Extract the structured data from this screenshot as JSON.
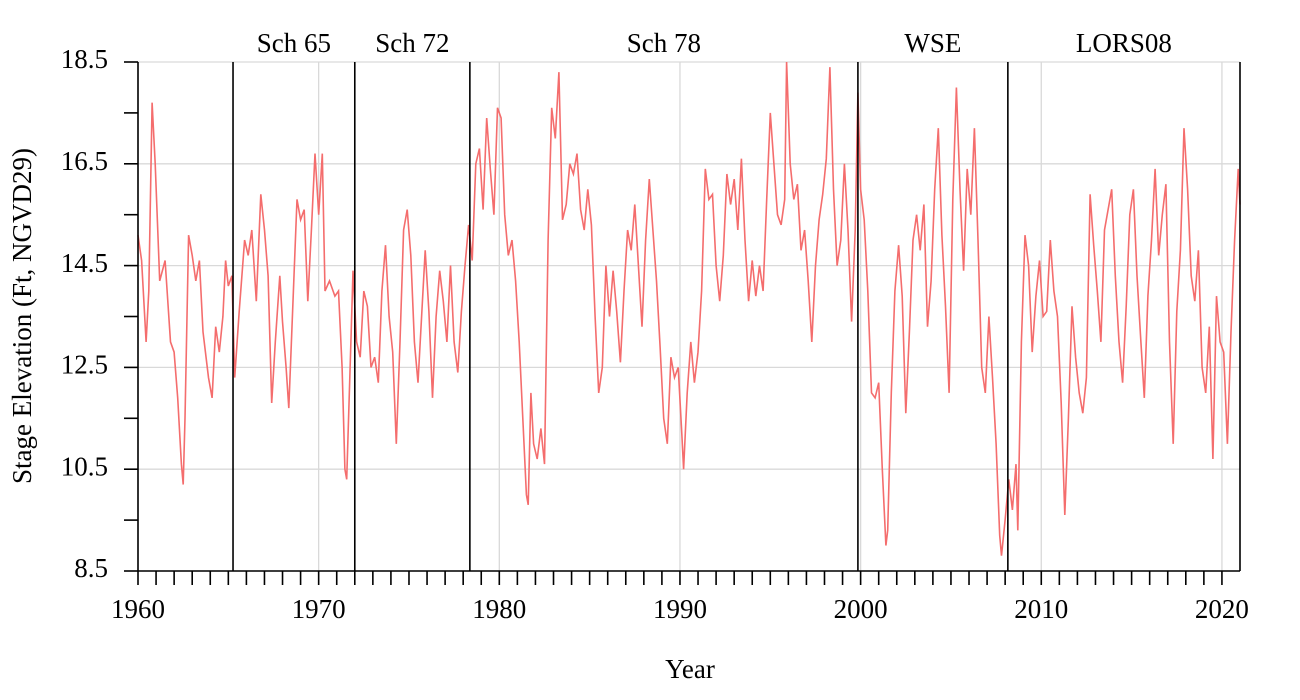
{
  "chart_data": {
    "type": "line",
    "x_label": "Year",
    "y_label": "Stage Elevation (Ft, NGVD29)",
    "xlim": [
      1960,
      2021
    ],
    "ylim": [
      8.5,
      18.5
    ],
    "xticks": [
      1960,
      1970,
      1980,
      1990,
      2000,
      2010,
      2020
    ],
    "yticks": [
      8.5,
      10.5,
      12.5,
      14.5,
      16.5,
      18.5
    ],
    "xminorticks": [
      1961,
      1962,
      1963,
      1964,
      1965,
      1966,
      1967,
      1968,
      1969,
      1971,
      1972,
      1973,
      1974,
      1975,
      1976,
      1977,
      1978,
      1979,
      1981,
      1982,
      1983,
      1984,
      1985,
      1986,
      1987,
      1988,
      1989,
      1991,
      1992,
      1993,
      1994,
      1995,
      1996,
      1997,
      1998,
      1999,
      2001,
      2002,
      2003,
      2004,
      2005,
      2006,
      2007,
      2008,
      2009,
      2011,
      2012,
      2013,
      2014,
      2015,
      2016,
      2017,
      2018,
      2019
    ],
    "yminorticks": [
      9.5,
      11.5,
      13.5,
      15.5,
      17.5
    ],
    "grid": true,
    "period_boundaries": [
      1965.26,
      1972.0,
      1978.37,
      1999.85,
      2008.15
    ],
    "period_labels": [
      "Sch 65",
      "Sch 72",
      "Sch 78",
      "WSE",
      "LORS08"
    ],
    "series": [
      {
        "name": "Stage",
        "color": "#f46d6d",
        "x": [
          1960.0,
          1960.2,
          1960.45,
          1960.6,
          1960.78,
          1960.95,
          1961.2,
          1961.5,
          1961.8,
          1962.0,
          1962.2,
          1962.4,
          1962.5,
          1962.6,
          1962.8,
          1963.0,
          1963.2,
          1963.4,
          1963.6,
          1963.9,
          1964.1,
          1964.3,
          1964.5,
          1964.7,
          1964.85,
          1965.0,
          1965.2,
          1965.35,
          1965.6,
          1965.9,
          1966.1,
          1966.3,
          1966.55,
          1966.8,
          1967.0,
          1967.2,
          1967.4,
          1967.6,
          1967.85,
          1968.0,
          1968.2,
          1968.35,
          1968.6,
          1968.8,
          1969.0,
          1969.2,
          1969.4,
          1969.6,
          1969.8,
          1970.0,
          1970.2,
          1970.35,
          1970.6,
          1970.9,
          1971.1,
          1971.3,
          1971.45,
          1971.55,
          1971.8,
          1971.9,
          1972.1,
          1972.3,
          1972.5,
          1972.7,
          1972.9,
          1973.1,
          1973.3,
          1973.5,
          1973.7,
          1973.9,
          1974.1,
          1974.3,
          1974.5,
          1974.7,
          1974.9,
          1975.1,
          1975.3,
          1975.5,
          1975.7,
          1975.9,
          1976.1,
          1976.3,
          1976.5,
          1976.7,
          1976.9,
          1977.1,
          1977.3,
          1977.5,
          1977.7,
          1977.9,
          1978.1,
          1978.3,
          1978.5,
          1978.7,
          1978.9,
          1979.1,
          1979.3,
          1979.5,
          1979.7,
          1979.9,
          1980.1,
          1980.3,
          1980.5,
          1980.7,
          1980.9,
          1981.1,
          1981.3,
          1981.5,
          1981.6,
          1981.75,
          1981.9,
          1982.1,
          1982.3,
          1982.5,
          1982.7,
          1982.9,
          1983.1,
          1983.3,
          1983.5,
          1983.7,
          1983.9,
          1984.1,
          1984.3,
          1984.5,
          1984.7,
          1984.9,
          1985.1,
          1985.3,
          1985.5,
          1985.7,
          1985.9,
          1986.1,
          1986.3,
          1986.5,
          1986.7,
          1986.9,
          1987.1,
          1987.3,
          1987.5,
          1987.7,
          1987.9,
          1988.1,
          1988.3,
          1988.5,
          1988.7,
          1988.9,
          1989.1,
          1989.3,
          1989.5,
          1989.7,
          1989.9,
          1990.1,
          1990.2,
          1990.4,
          1990.6,
          1990.8,
          1991.0,
          1991.2,
          1991.4,
          1991.6,
          1991.8,
          1992.0,
          1992.2,
          1992.4,
          1992.6,
          1992.8,
          1993.0,
          1993.2,
          1993.4,
          1993.6,
          1993.8,
          1994.0,
          1994.2,
          1994.4,
          1994.6,
          1994.8,
          1995.0,
          1995.2,
          1995.4,
          1995.6,
          1995.8,
          1995.9,
          1996.1,
          1996.3,
          1996.5,
          1996.7,
          1996.9,
          1997.1,
          1997.3,
          1997.5,
          1997.7,
          1997.9,
          1998.1,
          1998.3,
          1998.5,
          1998.7,
          1998.9,
          1999.1,
          1999.3,
          1999.5,
          1999.7,
          1999.85,
          2000.0,
          2000.2,
          2000.4,
          2000.6,
          2000.8,
          2001.0,
          2001.2,
          2001.4,
          2001.5,
          2001.7,
          2001.9,
          2002.1,
          2002.3,
          2002.5,
          2002.7,
          2002.9,
          2003.1,
          2003.3,
          2003.5,
          2003.7,
          2003.9,
          2004.1,
          2004.3,
          2004.5,
          2004.7,
          2004.9,
          2005.1,
          2005.3,
          2005.5,
          2005.7,
          2005.9,
          2006.1,
          2006.3,
          2006.5,
          2006.7,
          2006.9,
          2007.1,
          2007.3,
          2007.5,
          2007.7,
          2007.8,
          2008.0,
          2008.2,
          2008.4,
          2008.6,
          2008.7,
          2008.9,
          2009.1,
          2009.3,
          2009.5,
          2009.7,
          2009.9,
          2010.1,
          2010.3,
          2010.5,
          2010.7,
          2010.9,
          2011.1,
          2011.3,
          2011.5,
          2011.7,
          2011.9,
          2012.1,
          2012.3,
          2012.5,
          2012.7,
          2012.9,
          2013.1,
          2013.3,
          2013.5,
          2013.7,
          2013.9,
          2014.1,
          2014.3,
          2014.5,
          2014.7,
          2014.9,
          2015.1,
          2015.3,
          2015.5,
          2015.7,
          2015.9,
          2016.1,
          2016.3,
          2016.5,
          2016.7,
          2016.9,
          2017.1,
          2017.3,
          2017.5,
          2017.7,
          2017.9,
          2018.1,
          2018.3,
          2018.5,
          2018.7,
          2018.9,
          2019.1,
          2019.3,
          2019.5,
          2019.7,
          2019.9,
          2020.1,
          2020.3,
          2020.5,
          2020.7,
          2020.9,
          2021.0
        ],
        "values": [
          15.1,
          14.6,
          13.0,
          14.0,
          17.7,
          16.5,
          14.2,
          14.6,
          13.0,
          12.8,
          11.9,
          10.6,
          10.2,
          11.5,
          15.1,
          14.7,
          14.2,
          14.6,
          13.2,
          12.3,
          11.9,
          13.3,
          12.8,
          13.5,
          14.6,
          14.1,
          14.3,
          12.3,
          13.6,
          15.0,
          14.7,
          15.2,
          13.8,
          15.9,
          15.2,
          14.3,
          11.8,
          13.0,
          14.3,
          13.4,
          12.5,
          11.7,
          14.0,
          15.8,
          15.4,
          15.6,
          13.8,
          15.2,
          16.7,
          15.5,
          16.7,
          14.0,
          14.2,
          13.9,
          14.0,
          12.5,
          10.5,
          10.3,
          13.2,
          14.4,
          13.0,
          12.7,
          14.0,
          13.7,
          12.5,
          12.7,
          12.2,
          14.0,
          14.9,
          13.5,
          12.8,
          11.0,
          13.0,
          15.2,
          15.6,
          14.7,
          13.0,
          12.2,
          13.5,
          14.8,
          13.6,
          11.9,
          13.5,
          14.4,
          13.8,
          13.0,
          14.5,
          13.0,
          12.4,
          13.6,
          14.5,
          15.3,
          14.6,
          16.5,
          16.8,
          15.6,
          17.4,
          16.4,
          15.5,
          17.6,
          17.4,
          15.5,
          14.7,
          15.0,
          14.2,
          13.0,
          11.5,
          10.0,
          9.8,
          12.0,
          11.0,
          10.7,
          11.3,
          10.6,
          15.0,
          17.6,
          17.0,
          18.3,
          15.4,
          15.7,
          16.5,
          16.3,
          16.7,
          15.6,
          15.2,
          16.0,
          15.3,
          13.5,
          12.0,
          12.5,
          14.5,
          13.5,
          14.4,
          13.6,
          12.6,
          14.0,
          15.2,
          14.8,
          15.7,
          14.5,
          13.3,
          15.0,
          16.2,
          15.2,
          14.2,
          12.9,
          11.5,
          11.0,
          12.7,
          12.3,
          12.5,
          11.2,
          10.5,
          12.0,
          13.0,
          12.2,
          12.8,
          14.0,
          16.4,
          15.8,
          15.9,
          14.5,
          13.8,
          14.7,
          16.3,
          15.7,
          16.2,
          15.2,
          16.6,
          15.0,
          13.8,
          14.6,
          13.9,
          14.5,
          14.0,
          15.8,
          17.5,
          16.5,
          15.5,
          15.3,
          15.8,
          18.5,
          16.5,
          15.8,
          16.1,
          14.8,
          15.2,
          14.2,
          13.0,
          14.5,
          15.4,
          15.9,
          16.6,
          18.4,
          16.0,
          14.5,
          15.0,
          16.5,
          15.2,
          13.4,
          15.2,
          17.9,
          16.0,
          15.4,
          14.0,
          12.0,
          11.9,
          12.2,
          10.5,
          9.0,
          9.3,
          12.0,
          14.0,
          14.9,
          13.9,
          11.6,
          13.2,
          15.0,
          15.5,
          14.8,
          15.7,
          13.3,
          14.2,
          16.0,
          17.2,
          15.1,
          13.7,
          12.0,
          15.8,
          18.0,
          16.0,
          14.4,
          16.4,
          15.5,
          17.2,
          15.0,
          12.5,
          12.0,
          13.5,
          12.3,
          11.0,
          9.2,
          8.8,
          9.5,
          10.3,
          9.7,
          10.6,
          9.3,
          13.0,
          15.1,
          14.5,
          12.8,
          13.9,
          14.6,
          13.5,
          13.6,
          15.0,
          14.0,
          13.5,
          11.8,
          9.6,
          11.5,
          13.7,
          12.7,
          12.0,
          11.6,
          12.3,
          15.9,
          14.9,
          14.0,
          13.0,
          15.2,
          15.6,
          16.0,
          14.3,
          13.0,
          12.2,
          13.7,
          15.5,
          16.0,
          14.3,
          13.1,
          11.9,
          13.9,
          15.0,
          16.4,
          14.7,
          15.5,
          16.1,
          13.0,
          11.0,
          13.6,
          14.8,
          17.2,
          16.0,
          14.3,
          13.8,
          14.8,
          12.5,
          12.0,
          13.3,
          10.7,
          13.9,
          13.0,
          12.8,
          11.0,
          13.2,
          15.0,
          16.4,
          15.7
        ]
      }
    ]
  }
}
